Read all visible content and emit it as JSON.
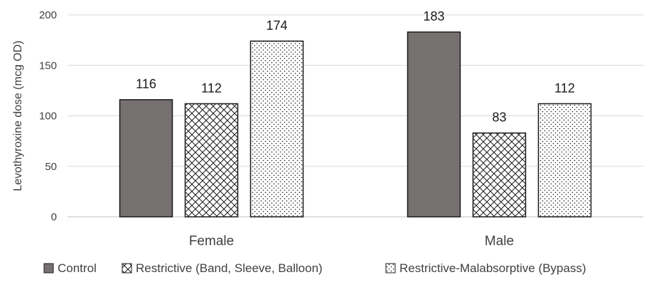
{
  "chart_data": {
    "type": "bar",
    "title": "",
    "xlabel": "",
    "ylabel": "Levothyroxine dose (mcg OD)",
    "ylim": [
      0,
      200
    ],
    "yticks": [
      0,
      50,
      100,
      150,
      200
    ],
    "grid": true,
    "legend_position": "bottom",
    "categories": [
      "Female",
      "Male"
    ],
    "series": [
      {
        "name": "Control",
        "values": [
          116,
          183
        ],
        "color": "#767171",
        "pattern": "solid"
      },
      {
        "name": "Restrictive (Band, Sleeve, Balloon)",
        "values": [
          112,
          83
        ],
        "color": "#1a1a1a",
        "pattern": "crosshatch"
      },
      {
        "name": "Restrictive-Malabsorptive (Bypass)",
        "values": [
          174,
          112
        ],
        "color": "#1a1a1a",
        "pattern": "dots"
      }
    ]
  }
}
